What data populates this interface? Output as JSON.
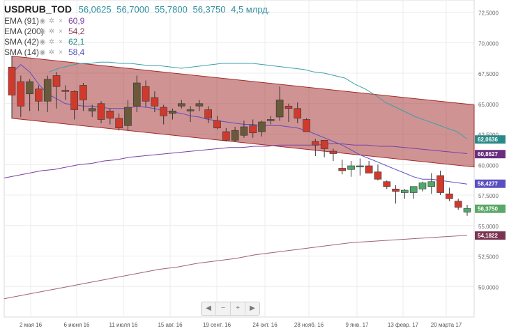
{
  "legend": {
    "symbol": "USDRUB_TOD",
    "open": "56,0625",
    "high": "56,7000",
    "low": "55,7800",
    "close": "56,3750",
    "volume": "4,5 млрд."
  },
  "indicators": [
    {
      "name": "EMA (91)",
      "value": "60,9",
      "color": "#7a3fa3"
    },
    {
      "name": "EMA (200)",
      "value": "54,2",
      "color": "#8b3a5a"
    },
    {
      "name": "SMA (42)",
      "value": "62,1",
      "color": "#2a8a88"
    },
    {
      "name": "SMA (14)",
      "value": "58,4",
      "color": "#5a4fc0"
    }
  ],
  "navigator": {
    "left": "◀",
    "minus": "−",
    "plus": "+",
    "right": "▶"
  },
  "chart_data": {
    "type": "candlestick",
    "ylim": [
      47.5,
      73.5
    ],
    "y_ticks": [
      "72,5000",
      "70,0000",
      "67,5000",
      "65,0000",
      "62,5000",
      "60,0000",
      "57,5000",
      "55,0000",
      "52,5000",
      "50,0000"
    ],
    "y_tick_values": [
      72.5,
      70,
      67.5,
      65,
      62.5,
      60,
      57.5,
      55,
      52.5,
      50
    ],
    "x_ticks": [
      "2 мая 16",
      "6 июня 16",
      "11 июля 16",
      "15 авг. 16",
      "19 сент. 16",
      "24 окт. 16",
      "28 нояб. 16",
      "9 янв. 17",
      "13 февр. 17",
      "20 марта 17"
    ],
    "candles": [
      {
        "o": 68.0,
        "h": 68.9,
        "l": 63.8,
        "c": 65.7
      },
      {
        "o": 66.8,
        "h": 67.3,
        "l": 63.9,
        "c": 64.8
      },
      {
        "o": 65.8,
        "h": 67.0,
        "l": 64.4,
        "c": 66.8
      },
      {
        "o": 66.2,
        "h": 66.5,
        "l": 64.4,
        "c": 65.2
      },
      {
        "o": 65.2,
        "h": 67.3,
        "l": 64.3,
        "c": 67.0
      },
      {
        "o": 67.3,
        "h": 67.6,
        "l": 64.6,
        "c": 66.4
      },
      {
        "o": 66.1,
        "h": 66.5,
        "l": 65.3,
        "c": 66.0
      },
      {
        "o": 66.0,
        "h": 66.1,
        "l": 63.7,
        "c": 64.5
      },
      {
        "o": 66.5,
        "h": 66.7,
        "l": 64.4,
        "c": 65.3
      },
      {
        "o": 64.4,
        "h": 64.9,
        "l": 63.9,
        "c": 64.6
      },
      {
        "o": 65.0,
        "h": 65.2,
        "l": 63.4,
        "c": 63.7
      },
      {
        "o": 64.4,
        "h": 64.6,
        "l": 63.3,
        "c": 63.8
      },
      {
        "o": 63.8,
        "h": 64.2,
        "l": 62.8,
        "c": 63.0
      },
      {
        "o": 63.2,
        "h": 65.3,
        "l": 62.8,
        "c": 64.7
      },
      {
        "o": 64.8,
        "h": 67.3,
        "l": 64.3,
        "c": 66.7
      },
      {
        "o": 66.4,
        "h": 66.9,
        "l": 64.7,
        "c": 65.2
      },
      {
        "o": 65.5,
        "h": 66.0,
        "l": 64.3,
        "c": 64.8
      },
      {
        "o": 64.7,
        "h": 64.9,
        "l": 63.3,
        "c": 64.0
      },
      {
        "o": 64.2,
        "h": 64.6,
        "l": 63.7,
        "c": 64.4
      },
      {
        "o": 64.8,
        "h": 65.3,
        "l": 64.6,
        "c": 65.0
      },
      {
        "o": 64.4,
        "h": 64.8,
        "l": 63.5,
        "c": 64.5
      },
      {
        "o": 64.8,
        "h": 65.3,
        "l": 64.4,
        "c": 65.0
      },
      {
        "o": 64.5,
        "h": 64.8,
        "l": 63.4,
        "c": 63.8
      },
      {
        "o": 63.6,
        "h": 64.0,
        "l": 62.9,
        "c": 63.0
      },
      {
        "o": 62.7,
        "h": 63.0,
        "l": 61.9,
        "c": 62.0
      },
      {
        "o": 62.0,
        "h": 63.1,
        "l": 61.9,
        "c": 62.8
      },
      {
        "o": 62.4,
        "h": 63.6,
        "l": 62.2,
        "c": 63.1
      },
      {
        "o": 63.2,
        "h": 63.7,
        "l": 62.2,
        "c": 62.6
      },
      {
        "o": 62.7,
        "h": 63.6,
        "l": 62.3,
        "c": 63.5
      },
      {
        "o": 63.6,
        "h": 64.0,
        "l": 63.3,
        "c": 63.7
      },
      {
        "o": 63.9,
        "h": 66.4,
        "l": 63.6,
        "c": 65.3
      },
      {
        "o": 64.8,
        "h": 65.0,
        "l": 63.5,
        "c": 64.6
      },
      {
        "o": 64.6,
        "h": 65.1,
        "l": 63.4,
        "c": 63.8
      },
      {
        "o": 63.7,
        "h": 63.8,
        "l": 62.8,
        "c": 62.7
      },
      {
        "o": 61.9,
        "h": 62.1,
        "l": 60.7,
        "c": 61.6
      },
      {
        "o": 62.0,
        "h": 62.0,
        "l": 60.6,
        "c": 61.3
      },
      {
        "o": 61.1,
        "h": 61.3,
        "l": 60.3,
        "c": 60.9
      },
      {
        "o": 59.7,
        "h": 60.4,
        "l": 59.2,
        "c": 59.5
      },
      {
        "o": 59.6,
        "h": 60.3,
        "l": 59.0,
        "c": 59.9
      },
      {
        "o": 59.8,
        "h": 60.5,
        "l": 59.1,
        "c": 59.9
      },
      {
        "o": 59.9,
        "h": 60.3,
        "l": 59.3,
        "c": 59.3
      },
      {
        "o": 59.4,
        "h": 60.0,
        "l": 58.7,
        "c": 58.8
      },
      {
        "o": 58.6,
        "h": 58.7,
        "l": 58.0,
        "c": 58.2
      },
      {
        "o": 58.0,
        "h": 58.3,
        "l": 56.8,
        "c": 57.8
      },
      {
        "o": 57.7,
        "h": 58.0,
        "l": 57.2,
        "c": 57.9
      },
      {
        "o": 57.7,
        "h": 58.2,
        "l": 57.2,
        "c": 58.2
      },
      {
        "o": 58.0,
        "h": 58.6,
        "l": 57.8,
        "c": 58.5
      },
      {
        "o": 58.2,
        "h": 59.3,
        "l": 57.6,
        "c": 58.6
      },
      {
        "o": 59.1,
        "h": 59.5,
        "l": 57.5,
        "c": 57.7
      },
      {
        "o": 57.6,
        "h": 58.1,
        "l": 57.0,
        "c": 57.2
      },
      {
        "o": 57.0,
        "h": 57.2,
        "l": 56.3,
        "c": 56.5
      },
      {
        "o": 56.1,
        "h": 56.7,
        "l": 55.8,
        "c": 56.4
      }
    ],
    "channel": {
      "upper": [
        68.9,
        64.9
      ],
      "lower": [
        63.8,
        59.8
      ]
    },
    "sma42": [
      67.6,
      67.9,
      68.1,
      68.3,
      68.3,
      68.4,
      68.4,
      68.3,
      68.3,
      68.2,
      68.1,
      68.1,
      68.0,
      67.9,
      68.0,
      68.1,
      68.2,
      68.3,
      68.3,
      68.3,
      68.3,
      68.2,
      68.1,
      68.0,
      67.9,
      67.8,
      67.6,
      67.5,
      67.3,
      67.1,
      66.6,
      66.2,
      65.7,
      65.1,
      64.7,
      64.3,
      63.9,
      63.6,
      63.3,
      63.0,
      62.7,
      62.1
    ],
    "ema91": [
      58.9,
      59.1,
      59.3,
      59.5,
      59.6,
      59.8,
      60.0,
      60.1,
      60.3,
      60.4,
      60.6,
      60.7,
      60.8,
      60.9,
      61.0,
      61.1,
      61.2,
      61.3,
      61.4,
      61.4,
      61.5,
      61.5,
      61.6,
      61.6,
      61.6,
      61.6,
      61.7,
      61.7,
      61.6,
      61.6,
      61.5,
      61.5,
      61.4,
      61.3,
      61.2,
      61.1,
      61.0,
      60.9
    ],
    "ema200": [
      49.0,
      49.3,
      49.6,
      49.9,
      50.2,
      50.5,
      50.8,
      51.1,
      51.4,
      51.6,
      51.9,
      52.1,
      52.3,
      52.6,
      52.8,
      53.0,
      53.2,
      53.4,
      53.6,
      53.7,
      53.8,
      53.9,
      54.0,
      54.1,
      54.2
    ],
    "sma14": [
      67.5,
      68.2,
      67.6,
      66.6,
      65.8,
      65.4,
      65.0,
      64.9,
      64.8,
      64.8,
      64.7,
      64.6,
      64.6,
      64.6,
      64.8,
      64.7,
      64.6,
      64.4,
      64.3,
      64.2,
      64.0,
      63.9,
      63.7,
      63.6,
      63.5,
      63.4,
      63.3,
      63.3,
      63.2,
      63.2,
      63.2,
      63.1,
      63.0,
      62.8,
      62.5,
      62.2,
      61.9,
      61.6,
      61.2,
      60.8,
      60.5,
      60.2,
      59.9,
      59.6,
      59.3,
      59.0,
      58.8,
      58.8,
      58.7,
      58.6,
      58.5,
      58.4
    ],
    "price_labels": [
      {
        "text": "62,0636",
        "value": 62.06,
        "color": "#2a8a88"
      },
      {
        "text": "60,8627",
        "value": 60.86,
        "color": "#6a2d80"
      },
      {
        "text": "58,4277",
        "value": 58.43,
        "color": "#5a4fc0"
      },
      {
        "text": "56,3750",
        "value": 56.375,
        "color": "#5aa866"
      },
      {
        "text": "54,1822",
        "value": 54.18,
        "color": "#7a3350"
      }
    ]
  }
}
